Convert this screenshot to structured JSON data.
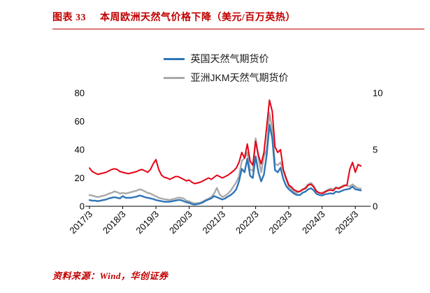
{
  "page": {
    "title_prefix": "图表 33",
    "title_text": "本周欧洲天然气价格下降（美元/百万英热）",
    "source_note": "资料来源：Wind，华创证券",
    "accent_color": "#C00000"
  },
  "chart_data": {
    "type": "line",
    "title": "本周欧洲天然气价格下降（美元/百万英热）",
    "grid": false,
    "legend_position": "top",
    "x_range": [
      2017.1667,
      2025.5
    ],
    "x_start": 2017.1667,
    "x_step": 0.0833333,
    "x_tick_labels": [
      "2017/3",
      "2018/3",
      "2019/3",
      "2020/3",
      "2021/3",
      "2022/3",
      "2023/3",
      "2024/3",
      "2025/3"
    ],
    "y_axis_left": {
      "range": [
        0,
        80
      ],
      "ticks": [
        0,
        20,
        40,
        60,
        80
      ]
    },
    "y_axis_right": {
      "range": [
        0,
        10
      ],
      "ticks": [
        0,
        5,
        10
      ]
    },
    "series": [
      {
        "name": "英国天然气期货价",
        "color": "#2e75b6",
        "axis": "right",
        "in_legend": true,
        "values": [
          0.55,
          0.5,
          0.5,
          0.45,
          0.5,
          0.55,
          0.6,
          0.7,
          0.75,
          0.8,
          0.75,
          0.7,
          0.9,
          0.75,
          0.75,
          0.75,
          0.8,
          0.85,
          0.95,
          0.9,
          0.8,
          0.75,
          0.7,
          0.65,
          0.55,
          0.5,
          0.45,
          0.4,
          0.4,
          0.4,
          0.45,
          0.5,
          0.55,
          0.55,
          0.45,
          0.35,
          0.3,
          0.2,
          0.15,
          0.2,
          0.25,
          0.35,
          0.5,
          0.6,
          0.7,
          0.9,
          0.8,
          0.7,
          0.6,
          0.7,
          0.85,
          1.0,
          1.2,
          1.5,
          2.2,
          3.3,
          3.0,
          4.2,
          2.7,
          2.5,
          4.4,
          3.0,
          2.2,
          2.8,
          4.5,
          7.2,
          6.0,
          3.2,
          3.0,
          3.4,
          2.4,
          1.8,
          1.5,
          1.3,
          1.1,
          1.0,
          1.0,
          1.2,
          1.3,
          1.5,
          1.6,
          1.4,
          1.1,
          1.0,
          0.95,
          1.05,
          1.1,
          1.15,
          1.1,
          1.3,
          1.25,
          1.35,
          1.45,
          1.5,
          1.55,
          1.75,
          1.5,
          1.45,
          1.4
        ]
      },
      {
        "name": "亚洲JKM天然气期货价",
        "color": "#a9a9a9",
        "axis": "left",
        "in_legend": true,
        "values": [
          8,
          7.5,
          7,
          6.5,
          7,
          7.5,
          8,
          9,
          9.5,
          10.5,
          10,
          9,
          9.5,
          9,
          9.5,
          10,
          10.5,
          11,
          12,
          11.5,
          10.5,
          9.5,
          9,
          8,
          7,
          6,
          5.5,
          5,
          4.8,
          4.5,
          5,
          5.5,
          6,
          6,
          5.5,
          4,
          3.5,
          2.5,
          2,
          2.2,
          2.5,
          3.5,
          4.5,
          5.5,
          6.5,
          9,
          13,
          8.5,
          6.5,
          7.5,
          9,
          11,
          14,
          17,
          21,
          32,
          34,
          38,
          26,
          25,
          48,
          34,
          24,
          35,
          40,
          66,
          54,
          30,
          29,
          31,
          25,
          19,
          14,
          12,
          10,
          9.5,
          10.5,
          11.5,
          13.5,
          15.5,
          16.5,
          14.5,
          10.5,
          9.5,
          9.5,
          10.5,
          11.5,
          12.5,
          12,
          13.5,
          13,
          14,
          15,
          14.5,
          14,
          15.5,
          14,
          12.5,
          12.5
        ]
      },
      {
        "name": "欧洲天然气价格",
        "color": "#e60013",
        "axis": "left",
        "in_legend": false,
        "values": [
          27,
          24.5,
          23.5,
          22.5,
          23,
          23.5,
          24,
          25,
          26,
          26.5,
          26,
          24.5,
          24,
          23.5,
          23,
          23.5,
          24,
          24.5,
          25.5,
          26,
          25,
          24,
          26,
          30,
          33,
          26,
          22,
          20.5,
          20,
          19,
          20,
          21,
          21,
          20,
          19,
          18,
          18.5,
          17,
          16,
          16.5,
          17,
          18,
          19,
          20,
          19,
          20.5,
          22,
          21,
          20,
          21,
          22,
          23.5,
          25,
          27,
          31,
          38,
          34,
          44,
          32,
          29,
          46,
          36,
          30,
          38,
          56,
          75,
          67,
          42,
          38,
          40,
          26,
          20,
          15,
          13.5,
          11.5,
          10.5,
          10.5,
          12,
          12.5,
          15,
          15.5,
          13.5,
          10.5,
          9.5,
          9,
          10,
          11,
          11.5,
          11,
          13,
          12.5,
          13.5,
          14.5,
          15,
          26,
          31,
          24,
          29.5,
          28.5
        ]
      }
    ]
  }
}
